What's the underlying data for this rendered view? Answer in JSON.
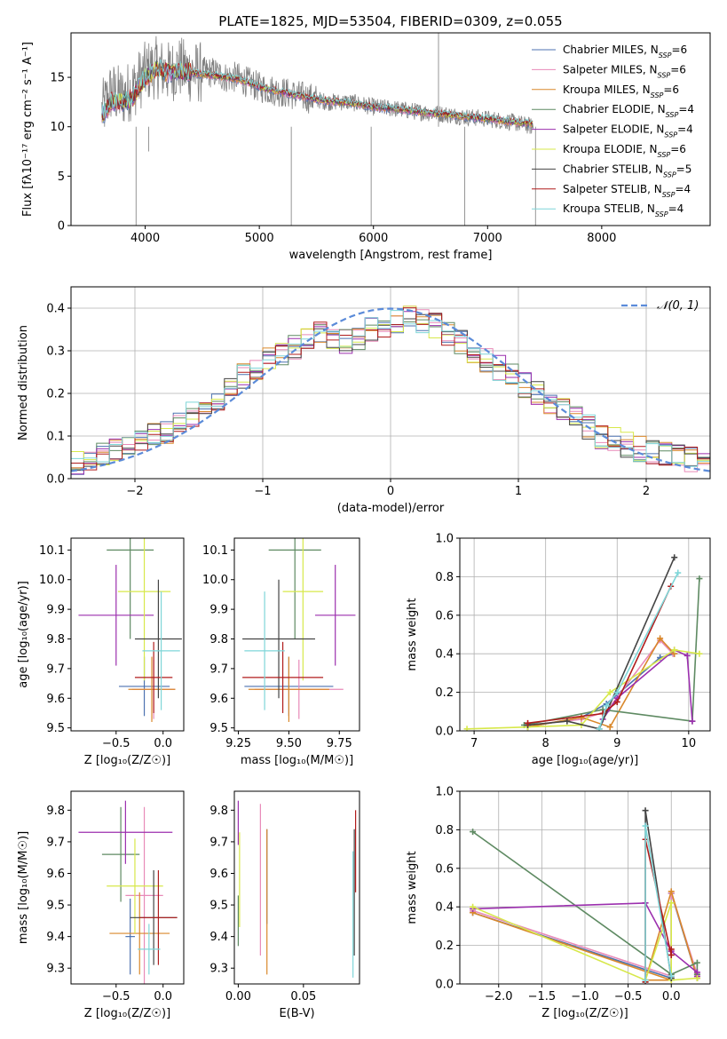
{
  "figure_title": "PLATE=1825, MJD=53504, FIBERID=0309, z=0.055",
  "model_colors": {
    "Chabrier MILES": "#4c72b0",
    "Salpeter MILES": "#e88ab8",
    "Kroupa MILES": "#d9882b",
    "Chabrier ELODIE": "#5e8a62",
    "Salpeter ELODIE": "#9b2fae",
    "Kroupa ELODIE": "#d7e84a",
    "Chabrier STELIB": "#444444",
    "Salpeter STELIB": "#b01c1c",
    "Kroupa STELIB": "#7fd6d8"
  },
  "chart_data": [
    {
      "id": "spectrum",
      "type": "line",
      "title": "PLATE=1825, MJD=53504, FIBERID=0309, z=0.055",
      "xlabel": "wavelength [Angstrom, rest frame]",
      "ylabel": "Flux [fλ10⁻¹⁷ erg cm⁻² s⁻¹ A⁻¹]",
      "xlim": [
        3350,
        8950
      ],
      "ylim": [
        0,
        19.5
      ],
      "xticks": [
        4000,
        5000,
        6000,
        7000,
        8000
      ],
      "yticks": [
        0,
        5,
        10,
        15
      ],
      "grid": false,
      "legend_position": "top-right",
      "legend": [
        {
          "name": "Chabrier MILES",
          "nssp": "6"
        },
        {
          "name": "Salpeter MILES",
          "nssp": "6"
        },
        {
          "name": "Kroupa MILES",
          "nssp": "6"
        },
        {
          "name": "Chabrier ELODIE",
          "nssp": "4"
        },
        {
          "name": "Salpeter ELODIE",
          "nssp": "4"
        },
        {
          "name": "Kroupa ELODIE",
          "nssp": "6"
        },
        {
          "name": "Chabrier STELIB",
          "nssp": "5"
        },
        {
          "name": "Salpeter STELIB",
          "nssp": "4"
        },
        {
          "name": "Kroupa STELIB",
          "nssp": "4"
        }
      ],
      "data_series": {
        "name": "data",
        "color": "#808080",
        "x": [
          3620,
          3700,
          3800,
          3900,
          4000,
          4100,
          4200,
          4300,
          4400,
          4500,
          4600,
          4700,
          4800,
          4900,
          5000,
          5200,
          5400,
          5600,
          5800,
          6000,
          6200,
          6400,
          6600,
          6800,
          7000,
          7200,
          7400
        ],
        "y": [
          11.5,
          13.5,
          13.0,
          14.0,
          15.5,
          16.0,
          15.5,
          16.0,
          15.5,
          15.5,
          15.5,
          15.0,
          15.0,
          14.5,
          14.0,
          13.5,
          13.0,
          12.5,
          12.5,
          12.0,
          11.8,
          11.5,
          11.3,
          11.0,
          10.8,
          10.5,
          10.0
        ]
      },
      "model_series": {
        "x": [
          3620,
          3700,
          3800,
          3900,
          4000,
          4100,
          4200,
          4300,
          4400,
          4500,
          4600,
          4700,
          4800,
          4900,
          5000,
          5200,
          5400,
          5600,
          5800,
          6000,
          6200,
          6400,
          6600,
          6800,
          7000,
          7200,
          7400
        ],
        "y": [
          11.0,
          12.5,
          12.5,
          13.0,
          15.0,
          15.8,
          15.5,
          15.6,
          15.5,
          15.3,
          15.2,
          15.0,
          14.8,
          14.5,
          14.0,
          13.5,
          13.0,
          12.6,
          12.4,
          12.0,
          11.8,
          11.5,
          11.3,
          11.0,
          10.8,
          10.5,
          10.3
        ]
      }
    },
    {
      "id": "residuals",
      "type": "line",
      "xlabel": "(data-model)/error",
      "ylabel": "Normed distribution",
      "xlim": [
        -2.5,
        2.5
      ],
      "ylim": [
        0,
        0.45
      ],
      "xticks": [
        -2,
        -1,
        0,
        1,
        2
      ],
      "yticks": [
        0.0,
        0.1,
        0.2,
        0.3,
        0.4
      ],
      "grid": true,
      "legend_position": "top-right",
      "legend": [
        {
          "name": "𝒩(0, 1)",
          "color": "#5b8bd9"
        }
      ],
      "bin_edges": [
        -2.5,
        -2.4,
        -2.3,
        -2.2,
        -2.1,
        -2.0,
        -1.9,
        -1.8,
        -1.7,
        -1.6,
        -1.5,
        -1.4,
        -1.3,
        -1.2,
        -1.1,
        -1.0,
        -0.9,
        -0.8,
        -0.7,
        -0.6,
        -0.5,
        -0.4,
        -0.3,
        -0.2,
        -0.1,
        0.0,
        0.1,
        0.2,
        0.3,
        0.4,
        0.5,
        0.6,
        0.7,
        0.8,
        0.9,
        1.0,
        1.1,
        1.2,
        1.3,
        1.4,
        1.5,
        1.6,
        1.7,
        1.8,
        1.9,
        2.0,
        2.1,
        2.2,
        2.3,
        2.4,
        2.5
      ],
      "base_hist": [
        0.035,
        0.045,
        0.055,
        0.065,
        0.08,
        0.09,
        0.1,
        0.11,
        0.13,
        0.15,
        0.17,
        0.19,
        0.22,
        0.24,
        0.26,
        0.28,
        0.29,
        0.31,
        0.33,
        0.34,
        0.33,
        0.32,
        0.33,
        0.35,
        0.36,
        0.37,
        0.38,
        0.37,
        0.36,
        0.34,
        0.32,
        0.3,
        0.28,
        0.26,
        0.24,
        0.22,
        0.2,
        0.18,
        0.16,
        0.14,
        0.12,
        0.1,
        0.09,
        0.08,
        0.07,
        0.06,
        0.055,
        0.05,
        0.045,
        0.04
      ]
    },
    {
      "id": "age-vs-metallicity",
      "type": "scatter",
      "xlabel": "Z [log₁₀(Z/Z☉)]",
      "ylabel": "age [log₁₀(age/yr)]",
      "xlim": [
        -0.98,
        0.22
      ],
      "ylim": [
        9.49,
        10.14
      ],
      "xticks": [
        -0.5,
        0.0
      ],
      "yticks": [
        9.5,
        9.6,
        9.7,
        9.8,
        9.9,
        10.0,
        10.1
      ],
      "grid": false,
      "points": [
        {
          "model": "Chabrier MILES",
          "x": -0.2,
          "y": 9.64,
          "xerr": 0.27,
          "yerr": 0.1
        },
        {
          "model": "Salpeter MILES",
          "x": -0.1,
          "y": 9.63,
          "xerr": 0.23,
          "yerr": 0.1
        },
        {
          "model": "Kroupa MILES",
          "x": -0.12,
          "y": 9.63,
          "xerr": 0.25,
          "yerr": 0.11
        },
        {
          "model": "Chabrier ELODIE",
          "x": -0.35,
          "y": 10.1,
          "xerr": 0.25,
          "yerr": 0.3
        },
        {
          "model": "Salpeter ELODIE",
          "x": -0.5,
          "y": 9.88,
          "xerr": 0.4,
          "yerr": 0.17
        },
        {
          "model": "Kroupa ELODIE",
          "x": -0.2,
          "y": 9.96,
          "xerr": 0.28,
          "yerr": 0.3
        },
        {
          "model": "Chabrier STELIB",
          "x": -0.05,
          "y": 9.8,
          "xerr": 0.25,
          "yerr": 0.2
        },
        {
          "model": "Salpeter STELIB",
          "x": -0.1,
          "y": 9.67,
          "xerr": 0.2,
          "yerr": 0.12
        },
        {
          "model": "Kroupa STELIB",
          "x": -0.02,
          "y": 9.76,
          "xerr": 0.2,
          "yerr": 0.2
        }
      ]
    },
    {
      "id": "age-vs-mass",
      "type": "scatter",
      "xlabel": "mass [log₁₀(M/M☉)]",
      "ylabel": "",
      "xlim": [
        9.23,
        9.85
      ],
      "ylim": [
        9.49,
        10.14
      ],
      "xticks": [
        9.25,
        9.5,
        9.75
      ],
      "yticks": [
        9.5,
        9.6,
        9.7,
        9.8,
        9.9,
        10.0,
        10.1
      ],
      "grid": false,
      "points": [
        {
          "model": "Chabrier MILES",
          "x": 9.5,
          "y": 9.64,
          "xerr": 0.22,
          "yerr": 0.1
        },
        {
          "model": "Salpeter MILES",
          "x": 9.55,
          "y": 9.63,
          "xerr": 0.22,
          "yerr": 0.1
        },
        {
          "model": "Kroupa MILES",
          "x": 9.5,
          "y": 9.63,
          "xerr": 0.2,
          "yerr": 0.11
        },
        {
          "model": "Chabrier ELODIE",
          "x": 9.53,
          "y": 10.1,
          "xerr": 0.13,
          "yerr": 0.3
        },
        {
          "model": "Salpeter ELODIE",
          "x": 9.73,
          "y": 9.88,
          "xerr": 0.1,
          "yerr": 0.17
        },
        {
          "model": "Kroupa ELODIE",
          "x": 9.57,
          "y": 9.96,
          "xerr": 0.1,
          "yerr": 0.3
        },
        {
          "model": "Chabrier STELIB",
          "x": 9.45,
          "y": 9.8,
          "xerr": 0.18,
          "yerr": 0.2
        },
        {
          "model": "Salpeter STELIB",
          "x": 9.47,
          "y": 9.67,
          "xerr": 0.2,
          "yerr": 0.12
        },
        {
          "model": "Kroupa STELIB",
          "x": 9.38,
          "y": 9.76,
          "xerr": 0.1,
          "yerr": 0.2
        }
      ]
    },
    {
      "id": "weight-vs-age",
      "type": "line",
      "xlabel": "age [log₁₀(age/yr)]",
      "ylabel": "mass weight",
      "xlim": [
        6.8,
        10.3
      ],
      "ylim": [
        0,
        1.0
      ],
      "xticks": [
        7,
        8,
        9,
        10
      ],
      "yticks": [
        0.0,
        0.2,
        0.4,
        0.6,
        0.8,
        1.0
      ],
      "grid": true,
      "series": [
        {
          "model": "Chabrier MILES",
          "x": [
            7.75,
            8.5,
            8.85,
            9.6,
            9.8
          ],
          "y": [
            0.02,
            0.07,
            0.14,
            0.38,
            0.4
          ]
        },
        {
          "model": "Salpeter MILES",
          "x": [
            7.75,
            8.5,
            8.85,
            9.6,
            9.78
          ],
          "y": [
            0.03,
            0.06,
            0.1,
            0.47,
            0.4
          ]
        },
        {
          "model": "Kroupa MILES",
          "x": [
            7.75,
            8.5,
            8.9,
            9.6,
            9.8
          ],
          "y": [
            0.02,
            0.07,
            0.02,
            0.48,
            0.4
          ]
        },
        {
          "model": "Chabrier ELODIE",
          "x": [
            7.7,
            8.8,
            10.05,
            10.15
          ],
          "y": [
            0.03,
            0.11,
            0.05,
            0.79
          ]
        },
        {
          "model": "Salpeter ELODIE",
          "x": [
            8.8,
            9.0,
            9.8,
            9.98,
            10.05
          ],
          "y": [
            0.06,
            0.17,
            0.42,
            0.39,
            0.05
          ]
        },
        {
          "model": "Kroupa ELODIE",
          "x": [
            6.9,
            7.75,
            8.5,
            8.9,
            9.8,
            10.15
          ],
          "y": [
            0.01,
            0.02,
            0.03,
            0.2,
            0.42,
            0.4
          ]
        },
        {
          "model": "Chabrier STELIB",
          "x": [
            7.75,
            8.3,
            8.75,
            9.8
          ],
          "y": [
            0.03,
            0.05,
            0.01,
            0.9
          ]
        },
        {
          "model": "Salpeter STELIB",
          "x": [
            7.75,
            8.8,
            9.0,
            9.75
          ],
          "y": [
            0.04,
            0.09,
            0.15,
            0.75
          ]
        },
        {
          "model": "Kroupa STELIB",
          "x": [
            8.75,
            8.85,
            9.0,
            9.85
          ],
          "y": [
            0.01,
            0.13,
            0.2,
            0.82
          ]
        }
      ]
    },
    {
      "id": "mass-vs-metallicity",
      "type": "scatter",
      "xlabel": "Z [log₁₀(Z/Z☉)]",
      "ylabel": "mass [log₁₀(M/M☉)]",
      "xlim": [
        -0.98,
        0.22
      ],
      "ylim": [
        9.25,
        9.86
      ],
      "xticks": [
        -0.5,
        0.0
      ],
      "yticks": [
        9.3,
        9.4,
        9.5,
        9.6,
        9.7,
        9.8
      ],
      "grid": false,
      "points": [
        {
          "model": "Chabrier MILES",
          "x": -0.35,
          "y": 9.4,
          "xerr": 0.05,
          "yerr": 0.12
        },
        {
          "model": "Salpeter MILES",
          "x": -0.2,
          "y": 9.53,
          "xerr": 0.2,
          "yerr": 0.28
        },
        {
          "model": "Kroupa MILES",
          "x": -0.25,
          "y": 9.41,
          "xerr": 0.32,
          "yerr": 0.13
        },
        {
          "model": "Chabrier ELODIE",
          "x": -0.45,
          "y": 9.66,
          "xerr": 0.2,
          "yerr": 0.15
        },
        {
          "model": "Salpeter ELODIE",
          "x": -0.4,
          "y": 9.73,
          "xerr": 0.5,
          "yerr": 0.1
        },
        {
          "model": "Kroupa ELODIE",
          "x": -0.3,
          "y": 9.56,
          "xerr": 0.3,
          "yerr": 0.15
        },
        {
          "model": "Chabrier STELIB",
          "x": -0.1,
          "y": 9.46,
          "xerr": 0.25,
          "yerr": 0.15
        },
        {
          "model": "Salpeter STELIB",
          "x": -0.05,
          "y": 9.46,
          "xerr": 0.2,
          "yerr": 0.15
        },
        {
          "model": "Kroupa STELIB",
          "x": -0.15,
          "y": 9.36,
          "xerr": 0.12,
          "yerr": 0.08
        }
      ]
    },
    {
      "id": "mass-vs-extinction",
      "type": "scatter",
      "xlabel": "E(B-V)",
      "ylabel": "",
      "xlim": [
        -0.003,
        0.093
      ],
      "ylim": [
        9.25,
        9.86
      ],
      "xticks": [
        0.0,
        0.05
      ],
      "yticks": [
        9.3,
        9.4,
        9.5,
        9.6,
        9.7,
        9.8
      ],
      "grid": false,
      "points": [
        {
          "model": "Chabrier MILES",
          "x": 0.022,
          "y": 9.59,
          "yerr": 0.15
        },
        {
          "model": "Salpeter MILES",
          "x": 0.017,
          "y": 9.58,
          "yerr": 0.24
        },
        {
          "model": "Kroupa MILES",
          "x": 0.022,
          "y": 9.51,
          "yerr": 0.23
        },
        {
          "model": "Chabrier ELODIE",
          "x": 0.0,
          "y": 9.45,
          "yerr": 0.08
        },
        {
          "model": "Salpeter ELODIE",
          "x": 0.0,
          "y": 9.76,
          "yerr": 0.07
        },
        {
          "model": "Kroupa ELODIE",
          "x": 0.001,
          "y": 9.58,
          "yerr": 0.15
        },
        {
          "model": "Chabrier STELIB",
          "x": 0.089,
          "y": 9.54,
          "yerr": 0.2
        },
        {
          "model": "Salpeter STELIB",
          "x": 0.09,
          "y": 9.67,
          "yerr": 0.13
        },
        {
          "model": "Kroupa STELIB",
          "x": 0.088,
          "y": 9.47,
          "yerr": 0.2
        }
      ]
    },
    {
      "id": "weight-vs-metallicity",
      "type": "line",
      "xlabel": "Z [log₁₀(Z/Z☉)]",
      "ylabel": "mass weight",
      "xlim": [
        -2.45,
        0.45
      ],
      "ylim": [
        0,
        1.0
      ],
      "xticks": [
        -2.0,
        -1.5,
        -1.0,
        -0.5,
        0.0
      ],
      "yticks": [
        0.0,
        0.2,
        0.4,
        0.6,
        0.8,
        1.0
      ],
      "grid": true,
      "series": [
        {
          "model": "Chabrier MILES",
          "x": [
            -2.3,
            0.0,
            0.0,
            0.3
          ],
          "y": [
            0.37,
            0.03,
            0.47,
            0.03
          ]
        },
        {
          "model": "Salpeter MILES",
          "x": [
            -2.3,
            0.0,
            0.0,
            0.3
          ],
          "y": [
            0.38,
            0.04,
            0.47,
            0.05
          ]
        },
        {
          "model": "Kroupa MILES",
          "x": [
            -2.3,
            0.0,
            -0.3,
            0.0,
            0.3
          ],
          "y": [
            0.37,
            0.02,
            0.02,
            0.48,
            0.03
          ]
        },
        {
          "model": "Chabrier ELODIE",
          "x": [
            -2.3,
            0.0,
            0.3,
            0.3
          ],
          "y": [
            0.79,
            0.05,
            0.11,
            0.05
          ]
        },
        {
          "model": "Salpeter ELODIE",
          "x": [
            -2.3,
            -0.3,
            0.0,
            0.3,
            0.3
          ],
          "y": [
            0.39,
            0.42,
            0.17,
            0.06,
            0.04
          ]
        },
        {
          "model": "Kroupa ELODIE",
          "x": [
            -2.3,
            -0.3,
            0.0,
            0.0,
            0.3
          ],
          "y": [
            0.4,
            0.02,
            0.42,
            0.02,
            0.03
          ]
        },
        {
          "model": "Chabrier STELIB",
          "x": [
            -0.3,
            -0.3,
            0.0
          ],
          "y": [
            0.01,
            0.9,
            0.03
          ]
        },
        {
          "model": "Salpeter STELIB",
          "x": [
            -0.3,
            -0.3,
            0.0,
            0.0
          ],
          "y": [
            0.01,
            0.75,
            0.15,
            0.18
          ]
        },
        {
          "model": "Kroupa STELIB",
          "x": [
            -0.3,
            -0.3,
            0.0
          ],
          "y": [
            0.02,
            0.82,
            0.04
          ]
        }
      ]
    }
  ]
}
